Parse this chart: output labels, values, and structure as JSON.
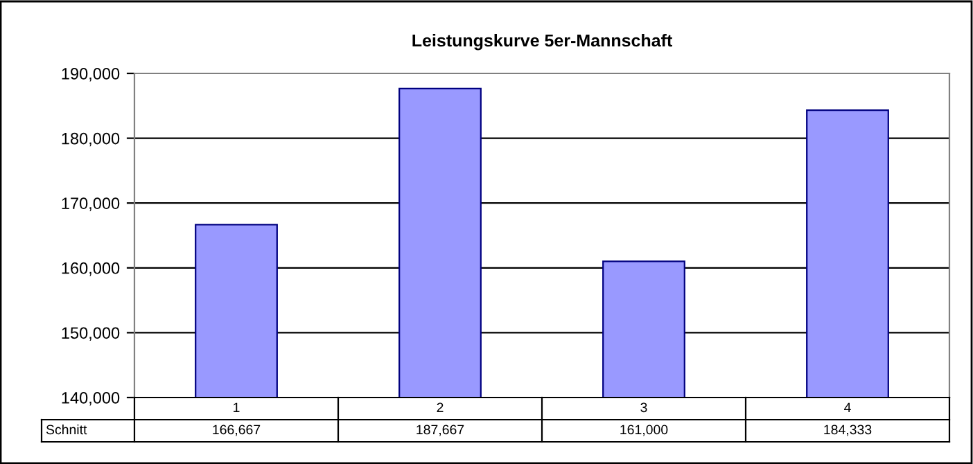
{
  "chart_data": {
    "type": "bar",
    "title": "Leistungskurve 5er-Mannschaft",
    "categories": [
      "1",
      "2",
      "3",
      "4"
    ],
    "series": [
      {
        "name": "Schnitt",
        "color": "#9999ff",
        "values": [
          166667,
          187667,
          161000,
          184333
        ],
        "value_labels": [
          "166,667",
          "187,667",
          "161,000",
          "184,333"
        ]
      }
    ],
    "ylim": [
      140000,
      190000
    ],
    "yticks": [
      {
        "value": 140000,
        "label": "140,000"
      },
      {
        "value": 150000,
        "label": "150,000"
      },
      {
        "value": 160000,
        "label": "160,000"
      },
      {
        "value": 170000,
        "label": "170,000"
      },
      {
        "value": 180000,
        "label": "180,000"
      },
      {
        "value": 190000,
        "label": "190,000"
      }
    ],
    "grid": "y"
  }
}
